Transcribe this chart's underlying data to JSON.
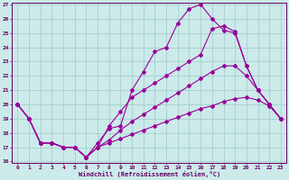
{
  "xlabel": "Windchill (Refroidissement éolien,°C)",
  "bg_color": "#cceaea",
  "line_color": "#990099",
  "ylim": [
    16,
    27
  ],
  "xlim": [
    -0.5,
    23.5
  ],
  "yticks": [
    16,
    17,
    18,
    19,
    20,
    21,
    22,
    23,
    24,
    25,
    26,
    27
  ],
  "xticks": [
    0,
    1,
    2,
    3,
    4,
    5,
    6,
    7,
    8,
    9,
    10,
    11,
    12,
    13,
    14,
    15,
    16,
    17,
    18,
    19,
    20,
    21,
    22,
    23
  ],
  "series": [
    {
      "x": [
        0,
        1,
        2,
        3,
        4,
        5,
        6,
        7,
        8,
        9,
        10,
        11,
        12,
        13,
        14,
        15,
        16,
        17,
        18,
        19,
        20,
        21,
        22,
        23
      ],
      "y": [
        20,
        19,
        17.3,
        17.3,
        17,
        17,
        16.3,
        17.3,
        18.3,
        18.5,
        21,
        22.3,
        23.7,
        24,
        25.7,
        26.7,
        27,
        26,
        25.2,
        25,
        22.7,
        21,
        20,
        19
      ]
    },
    {
      "x": [
        0,
        1,
        2,
        3,
        4,
        5,
        6,
        7,
        8,
        9,
        10,
        11,
        12,
        13,
        14,
        15,
        16,
        17,
        18,
        19,
        20,
        21,
        22,
        23
      ],
      "y": [
        20,
        19,
        17.3,
        17.3,
        17,
        17,
        16.3,
        17.0,
        18.5,
        19.5,
        20.5,
        21.0,
        21.5,
        22.0,
        22.5,
        23.0,
        23.5,
        25.3,
        25.5,
        25.1,
        22.7,
        21,
        20,
        19
      ]
    },
    {
      "x": [
        0,
        1,
        2,
        3,
        4,
        5,
        6,
        7,
        8,
        9,
        10,
        11,
        12,
        13,
        14,
        15,
        16,
        17,
        18,
        19,
        20,
        21,
        22,
        23
      ],
      "y": [
        20,
        19,
        17.3,
        17.3,
        17,
        17,
        16.3,
        17.0,
        17.5,
        18.2,
        18.8,
        19.3,
        19.8,
        20.3,
        20.8,
        21.3,
        21.8,
        22.3,
        22.7,
        22.7,
        22.0,
        21.0,
        20.0,
        19
      ]
    },
    {
      "x": [
        0,
        1,
        2,
        3,
        4,
        5,
        6,
        7,
        8,
        9,
        10,
        11,
        12,
        13,
        14,
        15,
        16,
        17,
        18,
        19,
        20,
        21,
        22,
        23
      ],
      "y": [
        20,
        19,
        17.3,
        17.3,
        17,
        17,
        16.3,
        17.0,
        17.3,
        17.6,
        17.9,
        18.2,
        18.5,
        18.8,
        19.1,
        19.4,
        19.7,
        19.9,
        20.2,
        20.4,
        20.5,
        20.3,
        19.9,
        19.0
      ]
    }
  ]
}
